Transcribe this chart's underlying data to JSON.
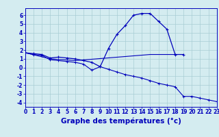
{
  "title": "Graphe des températures (°c)",
  "bg_color": "#d4ecf0",
  "grid_color": "#a8cdd4",
  "line_color": "#0000bb",
  "x_hours": [
    0,
    1,
    2,
    3,
    4,
    5,
    6,
    7,
    8,
    9,
    10,
    11,
    12,
    13,
    14,
    15,
    16,
    17,
    18,
    19,
    20,
    21,
    22,
    23
  ],
  "line1_x": [
    0,
    1,
    2,
    3,
    4,
    5,
    6,
    7,
    8,
    9,
    10,
    11,
    12,
    13,
    14,
    15,
    16,
    17,
    18,
    19
  ],
  "line1_y": [
    1.7,
    1.6,
    1.5,
    1.1,
    1.2,
    1.1,
    1.0,
    0.8,
    0.6,
    0.1,
    2.2,
    3.8,
    4.8,
    6.0,
    6.2,
    6.2,
    5.3,
    4.4,
    1.5,
    1.5
  ],
  "line2_x": [
    0,
    3,
    6,
    15,
    18
  ],
  "line2_y": [
    1.7,
    1.0,
    0.8,
    1.5,
    1.5
  ],
  "line3_x": [
    0,
    1,
    2,
    3,
    4,
    5,
    6,
    7,
    8,
    9,
    10,
    11,
    12,
    13,
    14,
    15,
    16,
    17,
    18,
    19,
    20,
    21,
    22,
    23
  ],
  "line3_y": [
    1.7,
    1.5,
    1.4,
    0.9,
    0.8,
    0.7,
    0.6,
    0.4,
    -0.3,
    0.1,
    -0.2,
    -0.5,
    -0.8,
    -1.0,
    -1.2,
    -1.5,
    -1.8,
    -2.0,
    -2.2,
    -3.3,
    -3.3,
    -3.5,
    -3.7,
    -3.9
  ],
  "ylim": [
    -4.5,
    6.8
  ],
  "yticks": [
    -4,
    -3,
    -2,
    -1,
    0,
    1,
    2,
    3,
    4,
    5,
    6
  ],
  "xlim": [
    0,
    23
  ],
  "tick_fontsize": 5.5,
  "label_fontsize": 7.5
}
